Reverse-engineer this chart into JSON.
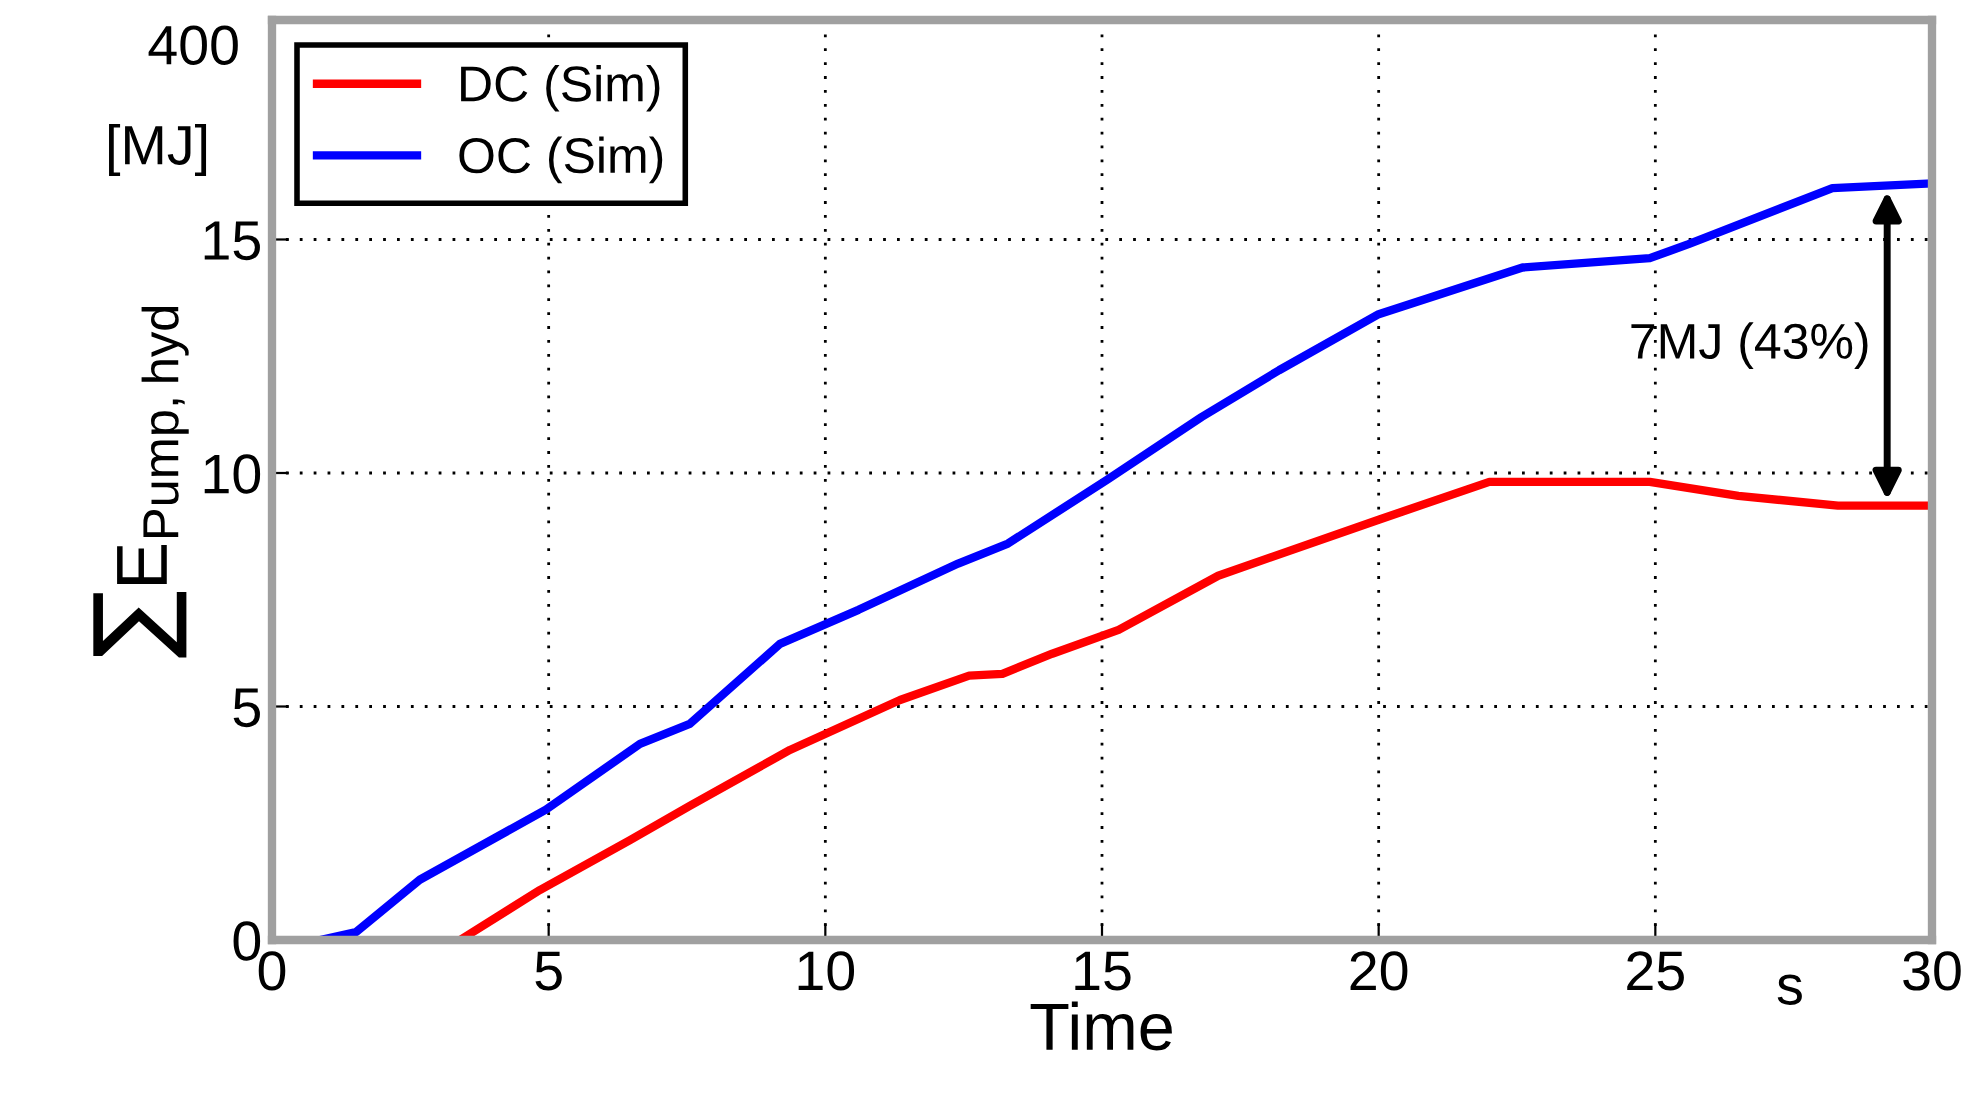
{
  "chart_data": {
    "type": "line",
    "xlabel": "Time",
    "ylabel": "∑E$_{Pump,hyd}$",
    "xlim": [
      0,
      30
    ],
    "xticks": [
      0,
      5,
      10,
      15,
      20,
      25,
      30
    ],
    "ylim": [
      0,
      19.7
    ],
    "yticks": [
      0,
      5,
      10,
      15
    ],
    "grid": true,
    "legend": "top left",
    "line_style": "solid",
    "series": [
      {
        "name": "DC (Sim)",
        "color": "#ff0000",
        "x": [
          3.4,
          4.84,
          6.47,
          7.55,
          9.36,
          11.35,
          12.6,
          13.2,
          14.1,
          15.3,
          17.1,
          20.0,
          22.0,
          24.9,
          26.5,
          28.3,
          30
        ],
        "values": [
          0,
          1.07,
          2.14,
          2.87,
          4.07,
          5.14,
          5.66,
          5.7,
          6.13,
          6.64,
          7.8,
          9.0,
          9.81,
          9.81,
          9.51,
          9.3,
          9.3
        ]
      },
      {
        "name": "OC (Sim)",
        "color": "#0000ff",
        "x": [
          0.87,
          1.52,
          2.67,
          4.95,
          6.65,
          7.55,
          9.18,
          10.6,
          12.4,
          13.3,
          15.1,
          16.8,
          18.2,
          20.0,
          22.6,
          24.9,
          25.6,
          28.2,
          30
        ],
        "values": [
          0,
          0.17,
          1.29,
          2.79,
          4.2,
          4.63,
          6.34,
          7.07,
          8.06,
          8.49,
          9.86,
          11.2,
          12.2,
          13.4,
          14.4,
          14.6,
          14.9,
          16.1,
          16.2
        ]
      }
    ],
    "annotations": [
      "7MJ (43%)",
      "[MJ]",
      "s",
      "400"
    ]
  }
}
